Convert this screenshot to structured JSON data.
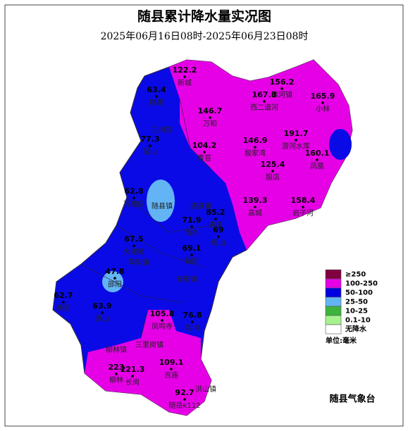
{
  "title": "随县累计降水量实况图",
  "subtitle": "2025年06月16日08时-2025年06月23日08时",
  "stations": [
    {
      "value": 122.2,
      "name": "新城"
    },
    {
      "value": 63.4,
      "name": "联建"
    },
    {
      "value": 156.2,
      "name": "淮河镇"
    },
    {
      "value": 167.8,
      "name": "西二道河"
    },
    {
      "value": 165.9,
      "name": "小林"
    },
    {
      "value": 146.7,
      "name": "万和"
    },
    {
      "value": 77.3,
      "name": "吴山"
    },
    {
      "value": 104.2,
      "name": "青苔"
    },
    {
      "value": 146.9,
      "name": "殷家湾"
    },
    {
      "value": 191.7,
      "name": "游河水库"
    },
    {
      "value": 160.1,
      "name": "凤凰"
    },
    {
      "value": 125.4,
      "name": "殷店"
    },
    {
      "value": 62.8,
      "name": "万福店"
    },
    {
      "value": 85.2,
      "name": "唐县"
    },
    {
      "value": 139.3,
      "name": "高城"
    },
    {
      "value": 158.4,
      "name": "岩子河"
    },
    {
      "value": 71.9,
      "name": "尚市"
    },
    {
      "value": 69,
      "name": "厉山"
    },
    {
      "value": 67.5,
      "name": "大堰坡"
    },
    {
      "value": 69.1,
      "name": "新街"
    },
    {
      "value": 47.8,
      "name": "邵阳"
    },
    {
      "value": 62.7,
      "name": "桥河"
    },
    {
      "value": 63.9,
      "name": "洪山"
    },
    {
      "value": 105.8,
      "name": "凤鸣寺"
    },
    {
      "value": 76.8,
      "name": "均川"
    },
    {
      "value": 109.1,
      "name": "吉庙"
    },
    {
      "value": 223,
      "name": "柳林"
    },
    {
      "value": 221.3,
      "name": "长岗"
    },
    {
      "value": 92.7,
      "name": "随岳k112"
    }
  ],
  "places": [
    "三川镇",
    "随县镇",
    "唐县镇",
    "草店镇",
    "安居镇",
    "三里岗镇",
    "柳林镇",
    "洪山镇"
  ],
  "legend": {
    "items": [
      {
        "label": "≥250",
        "color": "#800040"
      },
      {
        "label": "100-250",
        "color": "#e600e6"
      },
      {
        "label": "50-100",
        "color": "#0000e0"
      },
      {
        "label": "25-50",
        "color": "#63b4f5"
      },
      {
        "label": "10-25",
        "color": "#3cb43c"
      },
      {
        "label": "0.1-10",
        "color": "#a6f28f"
      },
      {
        "label": "无降水",
        "color": "#ffffff"
      }
    ],
    "unit": "单位:毫米"
  },
  "agency": "随县气象台"
}
